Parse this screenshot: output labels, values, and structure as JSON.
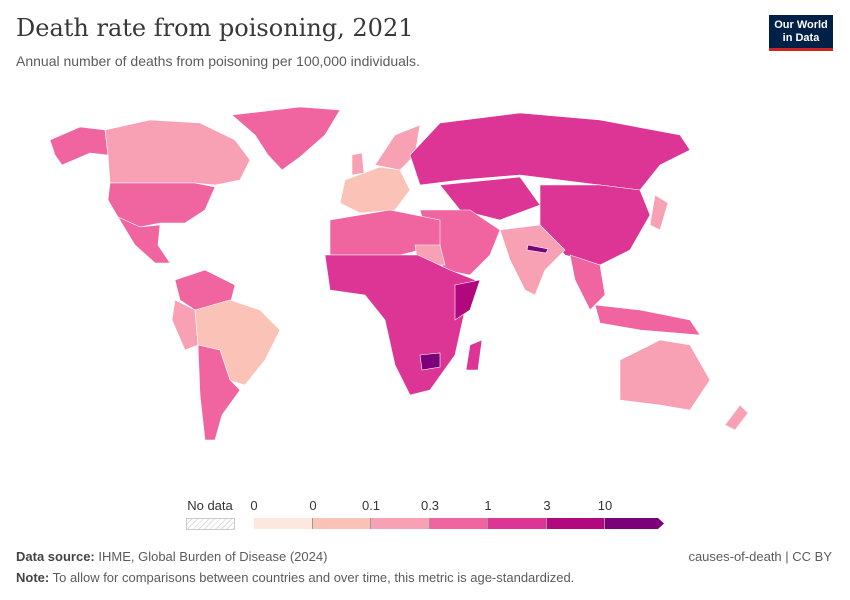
{
  "header": {
    "title": "Death rate from poisoning, 2021",
    "subtitle": "Annual number of deaths from poisoning per 100,000 individuals.",
    "logo": "Our World in Data"
  },
  "legend": {
    "no_data": "No data",
    "ticks": [
      "0",
      "0",
      "0.1",
      "0.3",
      "1",
      "3",
      "10"
    ],
    "colors": [
      "#fde8e0",
      "#fbc3b7",
      "#f8a0b4",
      "#f064a0",
      "#dc3596",
      "#b2087e",
      "#7a0177"
    ]
  },
  "footer": {
    "source_label": "Data source:",
    "source": "IHME, Global Burden of Disease (2024)",
    "note_label": "Note:",
    "note": "To allow for comparisons between countries and over time, this metric is age-standardized.",
    "license": "causes-of-death | CC BY"
  }
}
